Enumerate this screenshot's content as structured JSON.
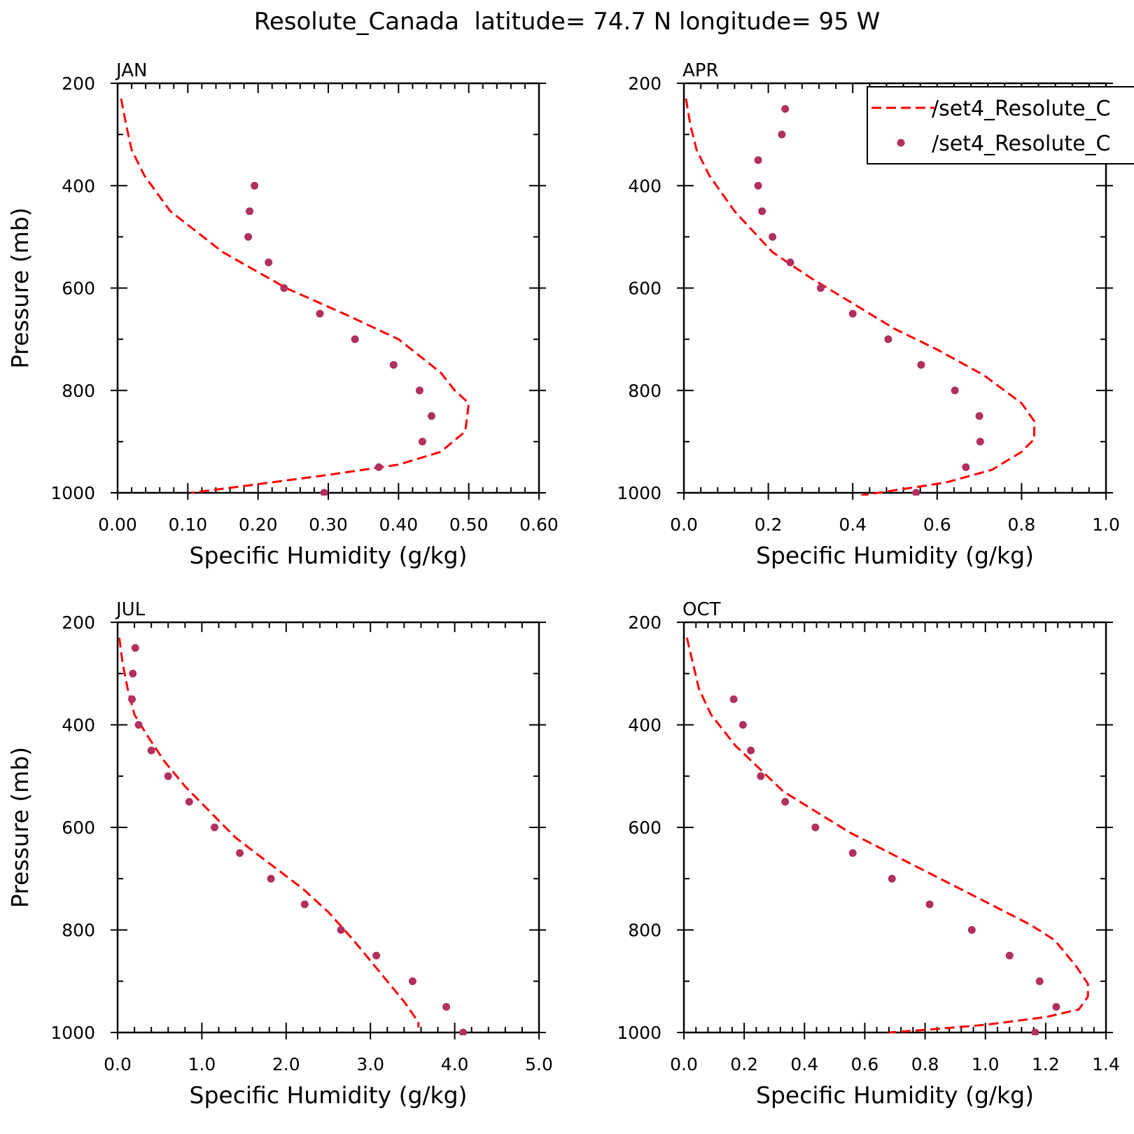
{
  "figure": {
    "title": "Resolute_Canada  latitude= 74.7 N longitude= 95 W"
  },
  "legend": {
    "items": [
      {
        "label": "/set4_Resolute_C",
        "style": "dashed-line"
      },
      {
        "label": "/set4_Resolute_C",
        "style": "dots"
      }
    ]
  },
  "colors": {
    "model_line": "#ff0000",
    "obs_dots": "#b03060",
    "frame": "#000000"
  },
  "chart_data": [
    {
      "type": "line",
      "panel_label": "JAN",
      "xlabel": "Specific Humidity (g/kg)",
      "ylabel": "Pressure (mb)",
      "xlim": [
        0,
        0.6
      ],
      "ylim": [
        1000,
        200
      ],
      "y_reversed": true,
      "xticks": [
        0,
        0.1,
        0.2,
        0.3,
        0.4,
        0.5,
        0.6
      ],
      "xtick_labels": [
        "0.00",
        "0.10",
        "0.20",
        "0.30",
        "0.40",
        "0.50",
        "0.60"
      ],
      "yticks": [
        200,
        400,
        600,
        800,
        1000
      ],
      "ytick_labels": [
        "200",
        "400",
        "600",
        "800",
        "1000"
      ],
      "series": [
        {
          "style": "dashed-line",
          "points": [
            [
              0.005,
              230
            ],
            [
              0.012,
              280
            ],
            [
              0.02,
              330
            ],
            [
              0.038,
              380
            ],
            [
              0.075,
              450
            ],
            [
              0.15,
              530
            ],
            [
              0.24,
              600
            ],
            [
              0.33,
              655
            ],
            [
              0.4,
              700
            ],
            [
              0.46,
              765
            ],
            [
              0.48,
              800
            ],
            [
              0.5,
              825
            ],
            [
              0.495,
              880
            ],
            [
              0.46,
              920
            ],
            [
              0.4,
              945
            ],
            [
              0.3,
              965
            ],
            [
              0.19,
              985
            ],
            [
              0.105,
              1000
            ]
          ]
        },
        {
          "style": "dots",
          "points": [
            [
              0.195,
              400
            ],
            [
              0.188,
              450
            ],
            [
              0.186,
              500
            ],
            [
              0.215,
              550
            ],
            [
              0.237,
              600
            ],
            [
              0.288,
              650
            ],
            [
              0.338,
              700
            ],
            [
              0.393,
              750
            ],
            [
              0.43,
              800
            ],
            [
              0.447,
              850
            ],
            [
              0.434,
              900
            ],
            [
              0.372,
              950
            ],
            [
              0.294,
              1000
            ]
          ]
        }
      ]
    },
    {
      "type": "line",
      "panel_label": "APR",
      "xlabel": "Specific Humidity (g/kg)",
      "ylabel": "",
      "xlim": [
        0,
        1.0
      ],
      "ylim": [
        1000,
        200
      ],
      "y_reversed": true,
      "xticks": [
        0,
        0.2,
        0.4,
        0.6,
        0.8,
        1.0
      ],
      "xtick_labels": [
        "0.0",
        "0.2",
        "0.4",
        "0.6",
        "0.8",
        "1.0"
      ],
      "yticks": [
        200,
        400,
        600,
        800,
        1000
      ],
      "ytick_labels": [
        "200",
        "400",
        "600",
        "800",
        "1000"
      ],
      "series": [
        {
          "style": "dashed-line",
          "points": [
            [
              0.005,
              230
            ],
            [
              0.015,
              280
            ],
            [
              0.03,
              330
            ],
            [
              0.06,
              380
            ],
            [
              0.12,
              450
            ],
            [
              0.21,
              530
            ],
            [
              0.3,
              580
            ],
            [
              0.4,
              630
            ],
            [
              0.5,
              680
            ],
            [
              0.6,
              720
            ],
            [
              0.71,
              770
            ],
            [
              0.8,
              825
            ],
            [
              0.83,
              860
            ],
            [
              0.83,
              895
            ],
            [
              0.8,
              920
            ],
            [
              0.73,
              955
            ],
            [
              0.62,
              980
            ],
            [
              0.54,
              990
            ],
            [
              0.42,
              1005
            ]
          ]
        },
        {
          "style": "dots",
          "points": [
            [
              0.24,
              250
            ],
            [
              0.232,
              300
            ],
            [
              0.176,
              350
            ],
            [
              0.176,
              400
            ],
            [
              0.185,
              450
            ],
            [
              0.21,
              500
            ],
            [
              0.252,
              550
            ],
            [
              0.324,
              600
            ],
            [
              0.4,
              650
            ],
            [
              0.484,
              700
            ],
            [
              0.562,
              750
            ],
            [
              0.642,
              800
            ],
            [
              0.7,
              850
            ],
            [
              0.702,
              900
            ],
            [
              0.668,
              950
            ],
            [
              0.55,
              1000
            ]
          ]
        }
      ]
    },
    {
      "type": "line",
      "panel_label": "JUL",
      "xlabel": "Specific Humidity (g/kg)",
      "ylabel": "Pressure (mb)",
      "xlim": [
        0,
        5.0
      ],
      "ylim": [
        1000,
        200
      ],
      "y_reversed": true,
      "xticks": [
        0,
        1,
        2,
        3,
        4,
        5
      ],
      "xtick_labels": [
        "0.0",
        "1.0",
        "2.0",
        "3.0",
        "4.0",
        "5.0"
      ],
      "yticks": [
        200,
        400,
        600,
        800,
        1000
      ],
      "ytick_labels": [
        "200",
        "400",
        "600",
        "800",
        "1000"
      ],
      "series": [
        {
          "style": "dashed-line",
          "points": [
            [
              0.02,
              230
            ],
            [
              0.06,
              280
            ],
            [
              0.12,
              330
            ],
            [
              0.2,
              380
            ],
            [
              0.35,
              420
            ],
            [
              0.55,
              470
            ],
            [
              0.8,
              520
            ],
            [
              1.1,
              570
            ],
            [
              1.4,
              620
            ],
            [
              1.8,
              670
            ],
            [
              2.2,
              720
            ],
            [
              2.5,
              765
            ],
            [
              2.8,
              820
            ],
            [
              3.1,
              880
            ],
            [
              3.4,
              940
            ],
            [
              3.57,
              980
            ],
            [
              3.57,
              990
            ]
          ]
        },
        {
          "style": "dots",
          "points": [
            [
              0.21,
              250
            ],
            [
              0.18,
              300
            ],
            [
              0.17,
              350
            ],
            [
              0.25,
              400
            ],
            [
              0.4,
              450
            ],
            [
              0.6,
              500
            ],
            [
              0.85,
              550
            ],
            [
              1.15,
              600
            ],
            [
              1.45,
              650
            ],
            [
              1.82,
              700
            ],
            [
              2.22,
              750
            ],
            [
              2.65,
              800
            ],
            [
              3.07,
              850
            ],
            [
              3.5,
              900
            ],
            [
              3.9,
              950
            ],
            [
              4.1,
              1000
            ]
          ]
        }
      ]
    },
    {
      "type": "line",
      "panel_label": "OCT",
      "xlabel": "Specific Humidity (g/kg)",
      "ylabel": "",
      "xlim": [
        0,
        1.4
      ],
      "ylim": [
        1000,
        200
      ],
      "y_reversed": true,
      "xticks": [
        0,
        0.2,
        0.4,
        0.6,
        0.8,
        1.0,
        1.2,
        1.4
      ],
      "xtick_labels": [
        "0.0",
        "0.2",
        "0.4",
        "0.6",
        "0.8",
        "1.0",
        "1.2",
        "1.4"
      ],
      "yticks": [
        200,
        400,
        600,
        800,
        1000
      ],
      "ytick_labels": [
        "200",
        "400",
        "600",
        "800",
        "1000"
      ],
      "series": [
        {
          "style": "dashed-line",
          "points": [
            [
              0.01,
              230
            ],
            [
              0.03,
              280
            ],
            [
              0.05,
              330
            ],
            [
              0.09,
              380
            ],
            [
              0.17,
              440
            ],
            [
              0.33,
              530
            ],
            [
              0.55,
              610
            ],
            [
              0.75,
              670
            ],
            [
              0.95,
              730
            ],
            [
              1.15,
              790
            ],
            [
              1.23,
              820
            ],
            [
              1.3,
              870
            ],
            [
              1.34,
              905
            ],
            [
              1.34,
              930
            ],
            [
              1.31,
              955
            ],
            [
              1.2,
              970
            ],
            [
              1.0,
              985
            ],
            [
              0.8,
              995
            ],
            [
              0.68,
              1000
            ]
          ]
        },
        {
          "style": "dots",
          "points": [
            [
              0.165,
              350
            ],
            [
              0.196,
              400
            ],
            [
              0.222,
              450
            ],
            [
              0.255,
              500
            ],
            [
              0.336,
              550
            ],
            [
              0.436,
              600
            ],
            [
              0.56,
              650
            ],
            [
              0.69,
              700
            ],
            [
              0.815,
              750
            ],
            [
              0.955,
              800
            ],
            [
              1.08,
              850
            ],
            [
              1.18,
              900
            ],
            [
              1.235,
              950
            ],
            [
              1.165,
              1000
            ]
          ]
        }
      ]
    }
  ]
}
